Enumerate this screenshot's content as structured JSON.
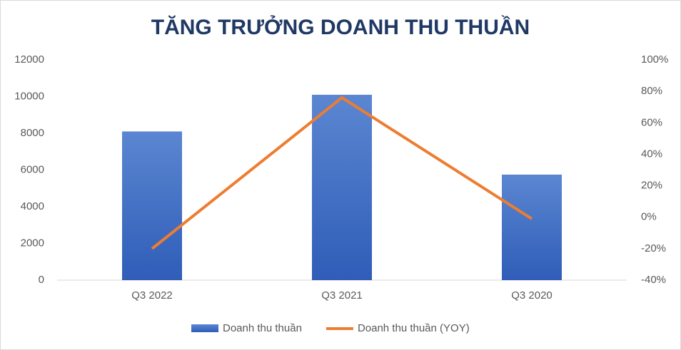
{
  "chart_data": {
    "type": "bar",
    "title": "TĂNG TRƯỞNG DOANH THU THUẦN",
    "categories": [
      "Q3 2022",
      "Q3 2021",
      "Q3 2020"
    ],
    "series": [
      {
        "name": "Doanh thu thuần",
        "type": "bar",
        "color": "#4472c4",
        "values": [
          8100,
          10100,
          5750
        ]
      },
      {
        "name": "Doanh thu thuần (YOY)",
        "type": "line",
        "color": "#ed7d31",
        "axis": "y2",
        "values": [
          -20,
          76,
          -1
        ]
      }
    ],
    "ylim": [
      0,
      12000
    ],
    "yticks": [
      0,
      2000,
      4000,
      6000,
      8000,
      10000,
      12000
    ],
    "y2lim": [
      -40,
      100
    ],
    "y2ticks": [
      {
        "value": -40,
        "label": "-40%"
      },
      {
        "value": -20,
        "label": "-20%"
      },
      {
        "value": 0,
        "label": "0%"
      },
      {
        "value": 20,
        "label": "20%"
      },
      {
        "value": 40,
        "label": "40%"
      },
      {
        "value": 60,
        "label": "60%"
      },
      {
        "value": 80,
        "label": "80%"
      },
      {
        "value": 100,
        "label": "100%"
      }
    ],
    "grid": false,
    "legend": "bottom"
  }
}
